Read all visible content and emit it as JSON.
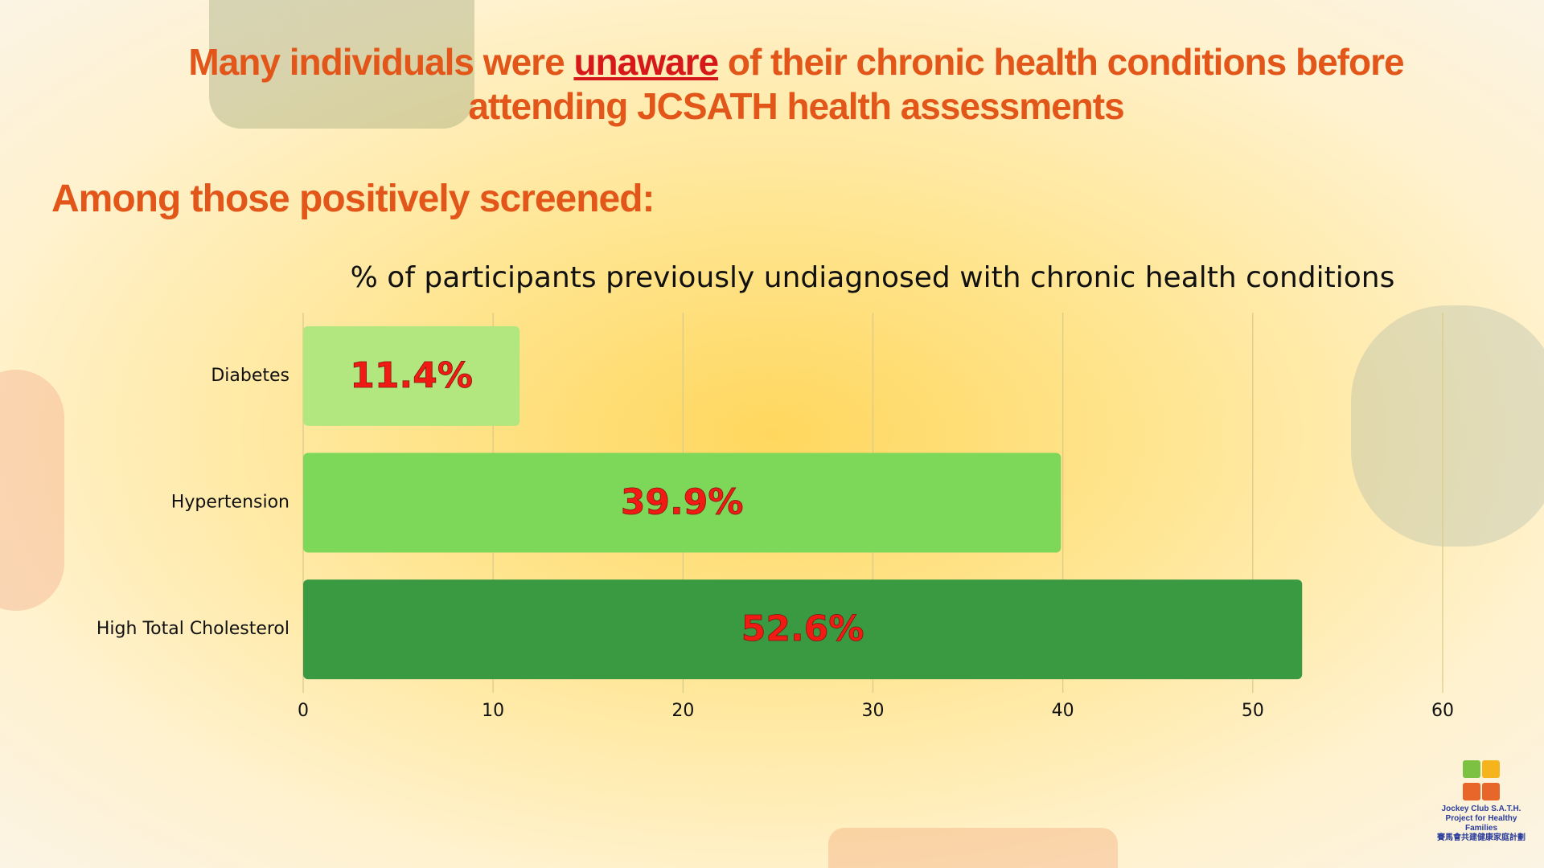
{
  "header": {
    "title": [
      "Many individuals were ",
      "unaware",
      " of their chronic health conditions before attending JCSATH health assessments"
    ],
    "subtitle": "Among those positively screened:"
  },
  "chart_data": {
    "type": "bar",
    "orientation": "horizontal",
    "title": "% of participants previously undiagnosed with chronic health conditions",
    "categories": [
      "Diabetes",
      "Hypertension",
      "High Total Cholesterol"
    ],
    "values": [
      11.4,
      39.9,
      52.6
    ],
    "value_labels": [
      "11.4%",
      "39.9%",
      "52.6%"
    ],
    "colors": [
      "#b2e67e",
      "#7dd85a",
      "#399a42"
    ],
    "label_color": "#f21b14",
    "xlim": [
      0,
      60
    ],
    "xticks": [
      0,
      10,
      20,
      30,
      40,
      50,
      60
    ],
    "grid": true
  },
  "logo": {
    "name": "Jockey Club S.A.T.H. Project for Healthy Families",
    "name_zh": "賽馬會共建健康家庭計劃"
  }
}
